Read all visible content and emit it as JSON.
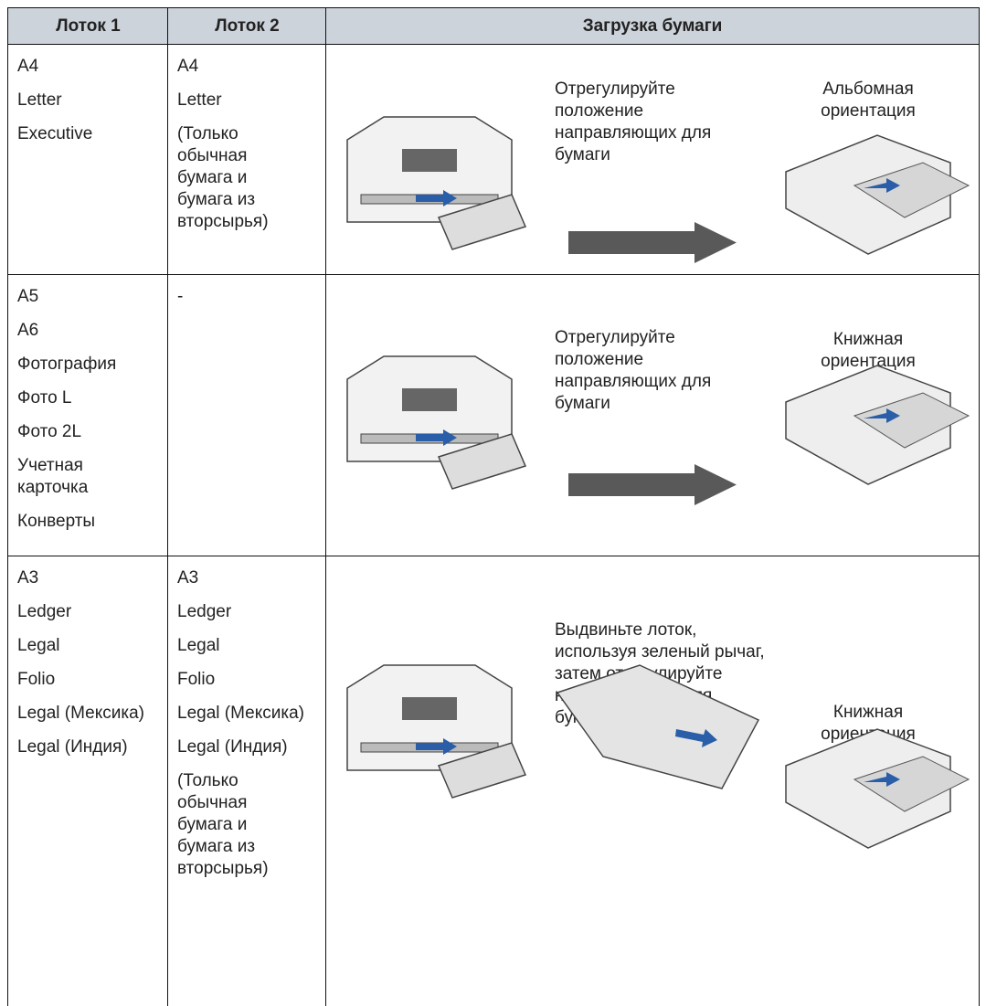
{
  "header": [
    "Лоток 1",
    "Лоток 2",
    "Загрузка бумаги"
  ],
  "rows": [
    {
      "tray1": [
        "A4",
        "Letter",
        "Executive"
      ],
      "tray2": [
        "A4",
        "Letter",
        "(Только обычная бумага и бумага из вторсырья)"
      ],
      "instruction": "Отрегулируйте положение направляющих для бумаги",
      "orientation": "Альбомная ориентация"
    },
    {
      "tray1": [
        "A5",
        "A6",
        "Фотография",
        "Фото L",
        "Фото 2L",
        "Учетная карточка",
        "Конверты"
      ],
      "tray2": [
        "-"
      ],
      "instruction": "Отрегулируйте положение направляющих для бумаги",
      "orientation": "Книжная ориентация"
    },
    {
      "tray1": [
        "A3",
        "Ledger",
        "Legal",
        "Folio",
        "Legal (Мексика)",
        "Legal (Индия)"
      ],
      "tray2": [
        "A3",
        "Ledger",
        "Legal",
        "Folio",
        "Legal (Мексика)",
        "Legal (Индия)",
        "(Только обычная бумага и бумага из вторсырья)"
      ],
      "instruction": "Выдвиньте лоток, используя зеленый рычаг, затем отрегулируйте направляющие для бумаги.",
      "orientation": "Книжная ориентация"
    }
  ]
}
